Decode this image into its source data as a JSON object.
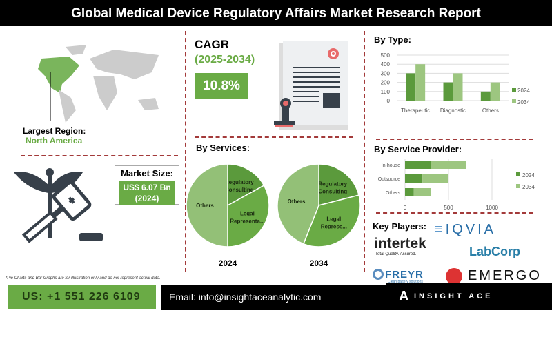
{
  "header": {
    "title": "Global Medical Device Regulatory Affairs Market Research Report"
  },
  "region": {
    "label": "Largest Region:",
    "value": "North America"
  },
  "market_size": {
    "label": "Market Size:",
    "value": "US$ 6.07 Bn",
    "year": "(2024)"
  },
  "cagr": {
    "label": "CAGR",
    "period": "(2025-2034)",
    "value": "10.8%"
  },
  "services": {
    "title": "By Services:"
  },
  "type_title": "By Type:",
  "provider_title": "By Service Provider:",
  "key_players": {
    "title": "Key Players:",
    "logos": [
      "IQVIA",
      "intertek",
      "Total Quality. Assured.",
      "LabCorp",
      "FREYR",
      "Clean battery solutions",
      "EMERGO"
    ]
  },
  "disclaimer": "*Pie Charts and Bar Graphs are for illustration only and do not represent actual data.",
  "footer": {
    "phone": "US: +1 551 226 6109",
    "email": "Email: info@insightaceanalytic.com",
    "brand": "INSIGHT ACE ANALYTIC"
  },
  "colors": {
    "dark_green": "#5b9a3c",
    "light_green": "#9dc680",
    "mid_green": "#6aab45"
  },
  "chart_data": [
    {
      "type": "bar",
      "title": "By Type:",
      "categories": [
        "Therapeutic",
        "Diagnostic",
        "Others"
      ],
      "series": [
        {
          "name": "2024",
          "values": [
            300,
            200,
            100
          ]
        },
        {
          "name": "2034",
          "values": [
            400,
            300,
            200
          ]
        }
      ],
      "ylim": [
        0,
        500
      ],
      "yticks": [
        0,
        100,
        200,
        300,
        400,
        500
      ],
      "grid": true,
      "legend": "right"
    },
    {
      "type": "bar",
      "orientation": "horizontal",
      "stacked": true,
      "title": "By Service Provider:",
      "categories": [
        "In-house",
        "Outsource",
        "Others"
      ],
      "series": [
        {
          "name": "2024",
          "values": [
            300,
            200,
            100
          ]
        },
        {
          "name": "2034",
          "values": [
            400,
            300,
            200
          ]
        }
      ],
      "xlim": [
        0,
        1000
      ],
      "xticks": [
        0,
        500,
        1000
      ],
      "legend": "right"
    },
    {
      "type": "pie",
      "label": "2024",
      "slices": [
        {
          "name": "Regulatory Consulting",
          "value": 17
        },
        {
          "name": "Legal Representa...",
          "value": 33
        },
        {
          "name": "Others",
          "value": 50
        }
      ]
    },
    {
      "type": "pie",
      "label": "2034",
      "slices": [
        {
          "name": "Regulatory Consulting",
          "value": 21
        },
        {
          "name": "Legal Represe...",
          "value": 35
        },
        {
          "name": "Others",
          "value": 44
        }
      ]
    }
  ]
}
